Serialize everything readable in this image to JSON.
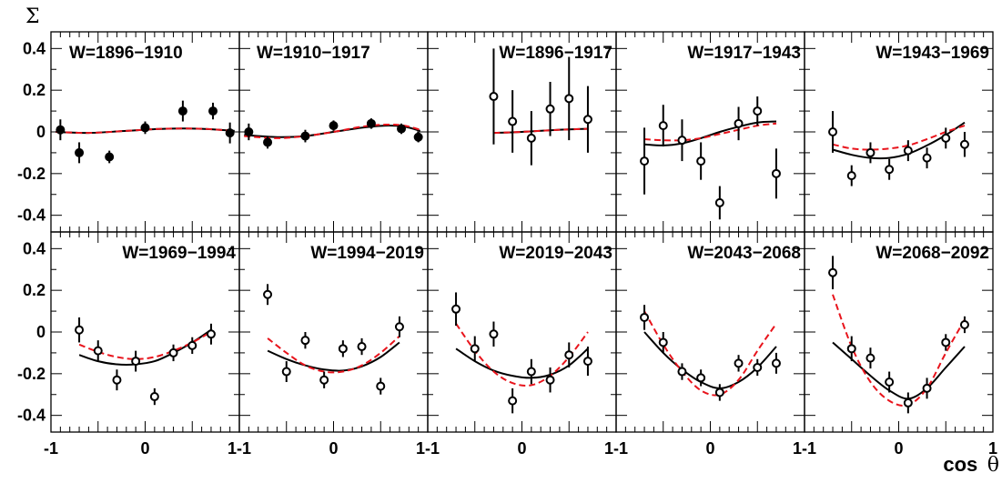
{
  "labels": {
    "ylabel": "Σ",
    "xlabel_main": "cos",
    "xlabel_symbol": "θ"
  },
  "legend": {
    "solid_color": "#000000",
    "dashed_color": "#e8141c",
    "filled_marker": "filled-circle",
    "open_marker": "open-circle"
  },
  "chart_data": {
    "type": "scatter",
    "ylabel": "Σ",
    "xlabel": "cos θ",
    "xlim": [
      -1,
      1
    ],
    "ylim": [
      -0.48,
      0.48
    ],
    "x_ticks": [
      "-1",
      "0",
      "1"
    ],
    "y_ticks": [
      "0.4",
      "0.2",
      "0",
      "-0.2",
      "-0.4"
    ],
    "y_tick_values": [
      0.4,
      0.2,
      0,
      -0.2,
      -0.4
    ],
    "panels": [
      {
        "title": "W=1896−1910",
        "marker": "filled",
        "points": [
          {
            "x": -0.9,
            "y": 0.01,
            "err": 0.05
          },
          {
            "x": -0.7,
            "y": -0.1,
            "err": 0.05
          },
          {
            "x": -0.38,
            "y": -0.12,
            "err": 0.03
          },
          {
            "x": 0.0,
            "y": 0.02,
            "err": 0.03
          },
          {
            "x": 0.4,
            "y": 0.1,
            "err": 0.05
          },
          {
            "x": 0.72,
            "y": 0.1,
            "err": 0.04
          },
          {
            "x": 0.9,
            "y": -0.005,
            "err": 0.05
          }
        ],
        "solid": {
          "x": [
            -0.95,
            -0.6,
            -0.2,
            0.2,
            0.6,
            0.95
          ],
          "y": [
            0.0,
            -0.005,
            0.005,
            0.015,
            0.015,
            0.005
          ]
        },
        "dashed": {
          "x": [
            -0.95,
            -0.6,
            -0.2,
            0.2,
            0.6,
            0.95
          ],
          "y": [
            0.0,
            -0.005,
            0.005,
            0.015,
            0.015,
            0.005
          ]
        }
      },
      {
        "title": "W=1910−1917",
        "marker": "filled",
        "points": [
          {
            "x": -0.9,
            "y": 0.0,
            "err": 0.04
          },
          {
            "x": -0.7,
            "y": -0.05,
            "err": 0.03
          },
          {
            "x": -0.3,
            "y": -0.02,
            "err": 0.03
          },
          {
            "x": 0.0,
            "y": 0.03,
            "err": 0.025
          },
          {
            "x": 0.4,
            "y": 0.04,
            "err": 0.025
          },
          {
            "x": 0.72,
            "y": 0.015,
            "err": 0.025
          },
          {
            "x": 0.9,
            "y": -0.025,
            "err": 0.025
          }
        ],
        "solid": {
          "x": [
            -0.95,
            -0.6,
            -0.3,
            0.0,
            0.3,
            0.55,
            0.75,
            0.92
          ],
          "y": [
            -0.015,
            -0.025,
            -0.02,
            0.0,
            0.02,
            0.03,
            0.025,
            0.005
          ]
        },
        "dashed": {
          "x": [
            -0.95,
            -0.6,
            -0.3,
            0.0,
            0.3,
            0.55,
            0.75,
            0.92
          ],
          "y": [
            -0.02,
            -0.03,
            -0.02,
            0.0,
            0.025,
            0.035,
            0.03,
            0.01
          ]
        }
      },
      {
        "title": "W=1896−1917",
        "marker": "open",
        "points": [
          {
            "x": -0.3,
            "y": 0.17,
            "err": 0.23
          },
          {
            "x": -0.1,
            "y": 0.05,
            "err": 0.15
          },
          {
            "x": 0.1,
            "y": -0.03,
            "err": 0.13
          },
          {
            "x": 0.3,
            "y": 0.11,
            "err": 0.13
          },
          {
            "x": 0.5,
            "y": 0.16,
            "err": 0.2
          },
          {
            "x": 0.7,
            "y": 0.06,
            "err": 0.16
          }
        ],
        "solid": {
          "x": [
            -0.3,
            0.0,
            0.3,
            0.5,
            0.7
          ],
          "y": [
            -0.005,
            0.0,
            0.008,
            0.012,
            0.015
          ]
        },
        "dashed": {
          "x": [
            -0.3,
            0.0,
            0.3,
            0.5,
            0.7
          ],
          "y": [
            -0.005,
            0.0,
            0.008,
            0.012,
            0.015
          ]
        }
      },
      {
        "title": "W=1917−1943",
        "marker": "open",
        "points": [
          {
            "x": -0.7,
            "y": -0.14,
            "err": 0.16
          },
          {
            "x": -0.5,
            "y": 0.03,
            "err": 0.1
          },
          {
            "x": -0.3,
            "y": -0.04,
            "err": 0.1
          },
          {
            "x": -0.1,
            "y": -0.14,
            "err": 0.09
          },
          {
            "x": 0.1,
            "y": -0.34,
            "err": 0.08
          },
          {
            "x": 0.3,
            "y": 0.04,
            "err": 0.08
          },
          {
            "x": 0.5,
            "y": 0.1,
            "err": 0.07
          },
          {
            "x": 0.7,
            "y": -0.2,
            "err": 0.12
          }
        ],
        "solid": {
          "x": [
            -0.7,
            -0.5,
            -0.3,
            -0.1,
            0.1,
            0.3,
            0.5,
            0.7
          ],
          "y": [
            -0.06,
            -0.065,
            -0.055,
            -0.03,
            0.0,
            0.025,
            0.045,
            0.05
          ]
        },
        "dashed": {
          "x": [
            -0.7,
            -0.5,
            -0.3,
            -0.1,
            0.1,
            0.3,
            0.5,
            0.7
          ],
          "y": [
            -0.035,
            -0.04,
            -0.04,
            -0.03,
            -0.01,
            0.01,
            0.03,
            0.04
          ]
        }
      },
      {
        "title": "W=1943−1969",
        "marker": "open",
        "points": [
          {
            "x": -0.7,
            "y": 0.0,
            "err": 0.1
          },
          {
            "x": -0.5,
            "y": -0.21,
            "err": 0.05
          },
          {
            "x": -0.3,
            "y": -0.1,
            "err": 0.05
          },
          {
            "x": -0.1,
            "y": -0.18,
            "err": 0.05
          },
          {
            "x": 0.1,
            "y": -0.09,
            "err": 0.05
          },
          {
            "x": 0.3,
            "y": -0.125,
            "err": 0.05
          },
          {
            "x": 0.5,
            "y": -0.03,
            "err": 0.05
          },
          {
            "x": 0.7,
            "y": -0.06,
            "err": 0.06
          }
        ],
        "solid": {
          "x": [
            -0.7,
            -0.5,
            -0.3,
            -0.1,
            0.1,
            0.3,
            0.5,
            0.7
          ],
          "y": [
            -0.085,
            -0.11,
            -0.125,
            -0.125,
            -0.105,
            -0.065,
            -0.015,
            0.045
          ]
        },
        "dashed": {
          "x": [
            -0.7,
            -0.5,
            -0.3,
            -0.1,
            0.1,
            0.3,
            0.5,
            0.7
          ],
          "y": [
            -0.06,
            -0.08,
            -0.085,
            -0.08,
            -0.065,
            -0.035,
            0.0,
            0.03
          ]
        }
      },
      {
        "title": "W=1969−1994",
        "marker": "open",
        "points": [
          {
            "x": -0.7,
            "y": 0.01,
            "err": 0.06
          },
          {
            "x": -0.5,
            "y": -0.09,
            "err": 0.05
          },
          {
            "x": -0.3,
            "y": -0.23,
            "err": 0.05
          },
          {
            "x": -0.1,
            "y": -0.14,
            "err": 0.05
          },
          {
            "x": 0.1,
            "y": -0.31,
            "err": 0.04
          },
          {
            "x": 0.3,
            "y": -0.1,
            "err": 0.04
          },
          {
            "x": 0.5,
            "y": -0.065,
            "err": 0.04
          },
          {
            "x": 0.7,
            "y": -0.01,
            "err": 0.05
          }
        ],
        "solid": {
          "x": [
            -0.7,
            -0.5,
            -0.3,
            -0.1,
            0.1,
            0.3,
            0.5,
            0.7
          ],
          "y": [
            -0.11,
            -0.14,
            -0.155,
            -0.155,
            -0.14,
            -0.1,
            -0.05,
            0.01
          ]
        },
        "dashed": {
          "x": [
            -0.7,
            -0.5,
            -0.3,
            -0.1,
            0.1,
            0.3,
            0.5,
            0.7
          ],
          "y": [
            -0.06,
            -0.095,
            -0.12,
            -0.13,
            -0.12,
            -0.09,
            -0.05,
            0.0
          ]
        }
      },
      {
        "title": "W=1994−2019",
        "marker": "open",
        "points": [
          {
            "x": -0.7,
            "y": 0.18,
            "err": 0.05
          },
          {
            "x": -0.5,
            "y": -0.19,
            "err": 0.05
          },
          {
            "x": -0.3,
            "y": -0.04,
            "err": 0.04
          },
          {
            "x": -0.1,
            "y": -0.23,
            "err": 0.04
          },
          {
            "x": 0.1,
            "y": -0.08,
            "err": 0.04
          },
          {
            "x": 0.3,
            "y": -0.07,
            "err": 0.04
          },
          {
            "x": 0.5,
            "y": -0.26,
            "err": 0.04
          },
          {
            "x": 0.7,
            "y": 0.025,
            "err": 0.05
          }
        ],
        "solid": {
          "x": [
            -0.7,
            -0.5,
            -0.3,
            -0.1,
            0.1,
            0.3,
            0.5,
            0.7
          ],
          "y": [
            -0.09,
            -0.13,
            -0.16,
            -0.18,
            -0.185,
            -0.165,
            -0.12,
            -0.05
          ]
        },
        "dashed": {
          "x": [
            -0.7,
            -0.5,
            -0.3,
            -0.1,
            0.1,
            0.3,
            0.5,
            0.7
          ],
          "y": [
            -0.03,
            -0.1,
            -0.16,
            -0.19,
            -0.19,
            -0.16,
            -0.1,
            -0.02
          ]
        }
      },
      {
        "title": "W=2019−2043",
        "marker": "open",
        "points": [
          {
            "x": -0.7,
            "y": 0.11,
            "err": 0.08
          },
          {
            "x": -0.5,
            "y": -0.08,
            "err": 0.06
          },
          {
            "x": -0.3,
            "y": -0.01,
            "err": 0.06
          },
          {
            "x": -0.1,
            "y": -0.33,
            "err": 0.06
          },
          {
            "x": 0.1,
            "y": -0.19,
            "err": 0.06
          },
          {
            "x": 0.3,
            "y": -0.23,
            "err": 0.06
          },
          {
            "x": 0.5,
            "y": -0.11,
            "err": 0.06
          },
          {
            "x": 0.7,
            "y": -0.14,
            "err": 0.07
          }
        ],
        "solid": {
          "x": [
            -0.7,
            -0.5,
            -0.3,
            -0.1,
            0.1,
            0.3,
            0.5,
            0.7
          ],
          "y": [
            -0.08,
            -0.14,
            -0.185,
            -0.21,
            -0.22,
            -0.205,
            -0.16,
            -0.08
          ]
        },
        "dashed": {
          "x": [
            -0.7,
            -0.5,
            -0.3,
            -0.1,
            0.1,
            0.3,
            0.5,
            0.7
          ],
          "y": [
            0.04,
            -0.09,
            -0.19,
            -0.245,
            -0.255,
            -0.21,
            -0.12,
            0.0
          ]
        }
      },
      {
        "title": "W=2043−2068",
        "marker": "open",
        "points": [
          {
            "x": -0.7,
            "y": 0.07,
            "err": 0.06
          },
          {
            "x": -0.5,
            "y": -0.05,
            "err": 0.05
          },
          {
            "x": -0.3,
            "y": -0.19,
            "err": 0.04
          },
          {
            "x": -0.1,
            "y": -0.22,
            "err": 0.04
          },
          {
            "x": 0.1,
            "y": -0.29,
            "err": 0.04
          },
          {
            "x": 0.3,
            "y": -0.15,
            "err": 0.04
          },
          {
            "x": 0.5,
            "y": -0.17,
            "err": 0.04
          },
          {
            "x": 0.7,
            "y": -0.15,
            "err": 0.05
          }
        ],
        "solid": {
          "x": [
            -0.7,
            -0.5,
            -0.3,
            -0.1,
            0.1,
            0.3,
            0.5,
            0.7
          ],
          "y": [
            0.0,
            -0.1,
            -0.18,
            -0.24,
            -0.27,
            -0.24,
            -0.17,
            -0.07
          ]
        },
        "dashed": {
          "x": [
            -0.7,
            -0.5,
            -0.3,
            -0.1,
            0.1,
            0.3,
            0.5,
            0.7
          ],
          "y": [
            0.1,
            -0.06,
            -0.19,
            -0.28,
            -0.3,
            -0.23,
            -0.09,
            0.04
          ]
        }
      },
      {
        "title": "W=2068−2092",
        "marker": "open",
        "points": [
          {
            "x": -0.7,
            "y": 0.285,
            "err": 0.08
          },
          {
            "x": -0.5,
            "y": -0.08,
            "err": 0.06
          },
          {
            "x": -0.3,
            "y": -0.125,
            "err": 0.05
          },
          {
            "x": -0.1,
            "y": -0.24,
            "err": 0.05
          },
          {
            "x": 0.1,
            "y": -0.34,
            "err": 0.05
          },
          {
            "x": 0.3,
            "y": -0.27,
            "err": 0.05
          },
          {
            "x": 0.5,
            "y": -0.05,
            "err": 0.04
          },
          {
            "x": 0.7,
            "y": 0.035,
            "err": 0.04
          }
        ],
        "solid": {
          "x": [
            -0.7,
            -0.5,
            -0.3,
            -0.1,
            0.1,
            0.3,
            0.5,
            0.7
          ],
          "y": [
            -0.05,
            -0.13,
            -0.21,
            -0.28,
            -0.32,
            -0.27,
            -0.17,
            -0.07
          ]
        },
        "dashed": {
          "x": [
            -0.7,
            -0.5,
            -0.3,
            -0.1,
            0.1,
            0.3,
            0.5,
            0.7
          ],
          "y": [
            0.18,
            -0.07,
            -0.24,
            -0.33,
            -0.35,
            -0.27,
            -0.1,
            0.06
          ]
        }
      }
    ]
  }
}
